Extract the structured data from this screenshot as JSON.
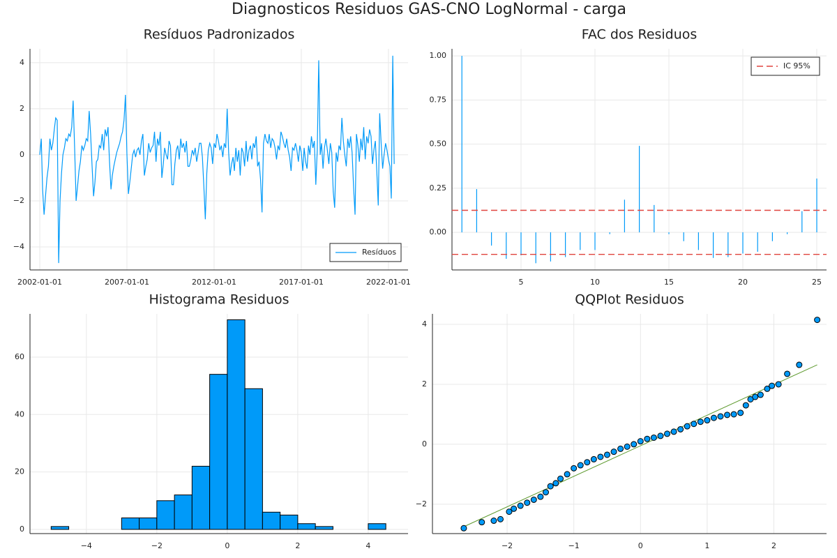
{
  "title": "Diagnosticos Residuos GAS-CNO LogNormal - carga",
  "chart_data": [
    {
      "type": "line",
      "title": "Resíduos Padronizados",
      "grid": true,
      "legend": "bottom-right",
      "xlim": [
        "2001-06-10",
        "2023-02-15"
      ],
      "ylim": [
        -5.0,
        4.6
      ],
      "xticks": [
        "2002-01-01",
        "2007-01-01",
        "2012-01-01",
        "2017-01-01",
        "2022-01-01"
      ],
      "yticks": [
        {
          "value": -4,
          "label": "−4"
        },
        {
          "value": -2,
          "label": "−2"
        },
        0,
        2,
        4
      ],
      "series": [
        {
          "name": "Resíduos",
          "color": "#009af9",
          "x": [
            "2002-01-01",
            "2002-02-01",
            "2002-03-01",
            "2002-04-01",
            "2002-05-01",
            "2002-06-01",
            "2002-07-01",
            "2002-08-01",
            "2002-09-01",
            "2002-10-01",
            "2002-11-01",
            "2002-12-01",
            "2003-01-01",
            "2003-02-01",
            "2003-03-01",
            "2003-04-01",
            "2003-05-01",
            "2003-06-01",
            "2003-07-01",
            "2003-08-01",
            "2003-09-01",
            "2003-10-01",
            "2003-11-01",
            "2003-12-01",
            "2004-01-01",
            "2004-02-01",
            "2004-03-01",
            "2004-04-01",
            "2004-05-01",
            "2004-06-01",
            "2004-07-01",
            "2004-08-01",
            "2004-09-01",
            "2004-10-01",
            "2004-11-01",
            "2004-12-01",
            "2005-01-01",
            "2005-02-01",
            "2005-03-01",
            "2005-04-01",
            "2005-05-01",
            "2005-06-01",
            "2005-07-01",
            "2005-08-01",
            "2005-09-01",
            "2005-10-01",
            "2005-11-01",
            "2005-12-01",
            "2006-01-01",
            "2006-02-01",
            "2006-03-01",
            "2006-04-01",
            "2006-05-01",
            "2006-06-01",
            "2006-07-01",
            "2006-08-01",
            "2006-09-01",
            "2006-10-01",
            "2006-11-01",
            "2006-12-01",
            "2007-01-01",
            "2007-02-01",
            "2007-03-01",
            "2007-04-01",
            "2007-05-01",
            "2007-06-01",
            "2007-07-01",
            "2007-08-01",
            "2007-09-01",
            "2007-10-01",
            "2007-11-01",
            "2007-12-01",
            "2008-01-01",
            "2008-02-01",
            "2008-03-01",
            "2008-04-01",
            "2008-05-01",
            "2008-06-01",
            "2008-07-01",
            "2008-08-01",
            "2008-09-01",
            "2008-10-01",
            "2008-11-01",
            "2008-12-01",
            "2009-01-01",
            "2009-02-01",
            "2009-03-01",
            "2009-04-01",
            "2009-05-01",
            "2009-06-01",
            "2009-07-01",
            "2009-08-01",
            "2009-09-01",
            "2009-10-01",
            "2009-11-01",
            "2009-12-01",
            "2010-01-01",
            "2010-02-01",
            "2010-03-01",
            "2010-04-01",
            "2010-05-01",
            "2010-06-01",
            "2010-07-01",
            "2010-08-01",
            "2010-09-01",
            "2010-10-01",
            "2010-11-01",
            "2010-12-01",
            "2011-01-01",
            "2011-02-01",
            "2011-03-01",
            "2011-04-01",
            "2011-05-01",
            "2011-06-01",
            "2011-07-01",
            "2011-08-01",
            "2011-09-01",
            "2011-10-01",
            "2011-11-01",
            "2011-12-01",
            "2012-01-01",
            "2012-02-01",
            "2012-03-01",
            "2012-04-01",
            "2012-05-01",
            "2012-06-01",
            "2012-07-01",
            "2012-08-01",
            "2012-09-01",
            "2012-10-01",
            "2012-11-01",
            "2012-12-01",
            "2013-01-01",
            "2013-02-01",
            "2013-03-01",
            "2013-04-01",
            "2013-05-01",
            "2013-06-01",
            "2013-07-01",
            "2013-08-01",
            "2013-09-01",
            "2013-10-01",
            "2013-11-01",
            "2013-12-01",
            "2014-01-01",
            "2014-02-01",
            "2014-03-01",
            "2014-04-01",
            "2014-05-01",
            "2014-06-01",
            "2014-07-01",
            "2014-08-01",
            "2014-09-01",
            "2014-10-01",
            "2014-11-01",
            "2014-12-01",
            "2015-01-01",
            "2015-02-01",
            "2015-03-01",
            "2015-04-01",
            "2015-05-01",
            "2015-06-01",
            "2015-07-01",
            "2015-08-01",
            "2015-09-01",
            "2015-10-01",
            "2015-11-01",
            "2015-12-01",
            "2016-01-01",
            "2016-02-01",
            "2016-03-01",
            "2016-04-01",
            "2016-05-01",
            "2016-06-01",
            "2016-07-01",
            "2016-08-01",
            "2016-09-01",
            "2016-10-01",
            "2016-11-01",
            "2016-12-01",
            "2017-01-01",
            "2017-02-01",
            "2017-03-01",
            "2017-04-01",
            "2017-05-01",
            "2017-06-01",
            "2017-07-01",
            "2017-08-01",
            "2017-09-01",
            "2017-10-01",
            "2017-11-01",
            "2017-12-01",
            "2018-01-01",
            "2018-02-01",
            "2018-03-01",
            "2018-04-01",
            "2018-05-01",
            "2018-06-01",
            "2018-07-01",
            "2018-08-01",
            "2018-09-01",
            "2018-10-01",
            "2018-11-01",
            "2018-12-01",
            "2019-01-01",
            "2019-02-01",
            "2019-03-01",
            "2019-04-01",
            "2019-05-01",
            "2019-06-01",
            "2019-07-01",
            "2019-08-01",
            "2019-09-01",
            "2019-10-01",
            "2019-11-01",
            "2019-12-01",
            "2020-01-01",
            "2020-02-01",
            "2020-03-01",
            "2020-04-01",
            "2020-05-01",
            "2020-06-01",
            "2020-07-01",
            "2020-08-01",
            "2020-09-01",
            "2020-10-01",
            "2020-11-01",
            "2020-12-01",
            "2021-01-01",
            "2021-02-01",
            "2021-03-01",
            "2021-04-01",
            "2021-05-01",
            "2021-06-01",
            "2021-07-01",
            "2021-08-01",
            "2021-09-01",
            "2021-10-01",
            "2021-11-01",
            "2021-12-01",
            "2022-01-01",
            "2022-02-01",
            "2022-03-01",
            "2022-04-01",
            "2022-05-01"
          ],
          "values": [
            0.0,
            0.7,
            -1.5,
            -2.6,
            -1.8,
            -1.0,
            -0.5,
            0.7,
            0.2,
            0.5,
            1.1,
            1.6,
            1.5,
            -4.7,
            -2.0,
            -0.8,
            0.0,
            0.3,
            0.7,
            0.6,
            0.9,
            0.8,
            1.2,
            2.35,
            0.3,
            -2.0,
            -1.4,
            -0.7,
            -0.3,
            0.4,
            0.2,
            0.4,
            0.7,
            0.6,
            1.9,
            0.9,
            -0.5,
            -1.8,
            -1.2,
            -0.3,
            -0.2,
            0.4,
            0.3,
            0.9,
            0.2,
            1.1,
            0.8,
            1.2,
            -0.3,
            -1.5,
            -0.9,
            -0.5,
            -0.2,
            0.1,
            0.3,
            0.5,
            0.8,
            1.0,
            1.5,
            2.6,
            0.0,
            -1.7,
            -1.2,
            -0.6,
            0.0,
            0.2,
            -0.1,
            0.2,
            0.3,
            0.0,
            0.6,
            0.9,
            -0.9,
            -0.5,
            -0.2,
            0.5,
            0.1,
            0.3,
            0.4,
            1.0,
            -0.3,
            0.7,
            0.4,
            1.0,
            -1.0,
            -0.4,
            0.3,
            0.0,
            -0.2,
            0.6,
            0.4,
            -1.3,
            -1.3,
            -0.4,
            0.2,
            0.4,
            -0.2,
            0.7,
            0.3,
            0.5,
            0.1,
            0.6,
            -0.5,
            -0.5,
            -0.2,
            0.2,
            0.0,
            0.3,
            -0.3,
            0.1,
            0.5,
            0.5,
            -0.1,
            -1.4,
            -2.8,
            -0.8,
            0.2,
            0.5,
            0.3,
            -0.4,
            0.5,
            0.3,
            0.9,
            0.6,
            0.2,
            0.4,
            -0.1,
            0.5,
            0.3,
            2.0,
            0.1,
            -0.9,
            -0.4,
            -0.1,
            -0.7,
            0.3,
            -0.3,
            0.2,
            -0.9,
            0.3,
            0.1,
            -0.5,
            0.6,
            -0.3,
            0.2,
            0.4,
            -0.2,
            0.5,
            0.3,
            0.8,
            -0.5,
            -0.3,
            -1.1,
            -2.5,
            0.5,
            0.9,
            0.6,
            0.5,
            0.9,
            0.3,
            0.7,
            0.6,
            0.3,
            -0.2,
            0.4,
            0.2,
            1.0,
            0.8,
            0.5,
            0.3,
            0.7,
            0.2,
            -0.1,
            -0.7,
            0.3,
            0.2,
            0.5,
            0.2,
            -0.3,
            0.4,
            0.1,
            -0.7,
            0.3,
            -0.3,
            -0.6,
            0.4,
            0.0,
            0.8,
            0.3,
            0.6,
            -1.3,
            0.2,
            4.1,
            0.0,
            0.5,
            -0.6,
            0.3,
            0.7,
            0.2,
            -0.4,
            0.5,
            0.1,
            -1.6,
            -2.3,
            0.1,
            -0.3,
            0.4,
            0.2,
            1.6,
            0.6,
            0.0,
            -0.5,
            0.7,
            0.3,
            0.8,
            0.1,
            -1.4,
            -2.6,
            0.9,
            0.4,
            -0.3,
            0.7,
            0.2,
            1.2,
            -0.2,
            0.8,
            0.5,
            1.1,
            0.8,
            -0.4,
            0.2,
            0.6,
            -0.7,
            -2.2,
            1.8,
            0.5,
            -0.6,
            0.0,
            0.5,
            0.2,
            -0.2,
            -0.5,
            -1.9,
            4.3,
            -0.4
          ]
        }
      ]
    },
    {
      "type": "stem",
      "title": "FAC dos Residuos",
      "grid": true,
      "legend": "top-right",
      "xlim": [
        0.33,
        25.66
      ],
      "ylim": [
        -0.213,
        1.04
      ],
      "xticks": [
        5,
        10,
        15,
        20,
        25
      ],
      "yticks": [
        {
          "value": 0,
          "label": "0.00"
        },
        {
          "value": 0.25,
          "label": "0.25"
        },
        {
          "value": 0.5,
          "label": "0.50"
        },
        {
          "value": 0.75,
          "label": "0.75"
        },
        {
          "value": 1,
          "label": "1.00"
        }
      ],
      "series": [
        {
          "color": "#009af9",
          "x": [
            1,
            2,
            3,
            4,
            5,
            6,
            7,
            8,
            9,
            10,
            11,
            12,
            13,
            14,
            15,
            16,
            17,
            18,
            19,
            20,
            21,
            22,
            23,
            24,
            25
          ],
          "values": [
            1.0,
            0.245,
            -0.075,
            -0.15,
            -0.13,
            -0.175,
            -0.165,
            -0.14,
            -0.1,
            -0.1,
            -0.01,
            0.185,
            0.49,
            0.155,
            -0.01,
            -0.05,
            -0.1,
            -0.145,
            -0.14,
            -0.12,
            -0.11,
            -0.05,
            -0.01,
            0.12,
            0.305
          ]
        }
      ],
      "hlines": {
        "name": "IC 95%",
        "color": "#e0443e",
        "values": [
          0.125,
          -0.125
        ]
      }
    },
    {
      "type": "histogram",
      "title": "Histograma Residuos",
      "grid": true,
      "color": "#009af9",
      "xlim": [
        -5.6,
        5.13
      ],
      "ylim": [
        -1.46,
        75.05
      ],
      "xticks": [
        {
          "value": -4,
          "label": "−4"
        },
        {
          "value": -2,
          "label": "−2"
        },
        0,
        2,
        4
      ],
      "yticks": [
        0,
        20,
        40,
        60
      ],
      "bins": [
        -5,
        -4.5,
        -4,
        -3.5,
        -3,
        -2.5,
        -2,
        -1.5,
        -1,
        -0.5,
        0,
        0.5,
        1,
        1.5,
        2,
        2.5,
        3,
        3.5,
        4,
        4.5
      ],
      "counts": [
        1,
        0,
        0,
        0,
        4,
        4,
        10,
        12,
        22,
        54,
        73,
        49,
        6,
        5,
        2,
        1,
        0,
        0,
        2
      ]
    },
    {
      "type": "scatter",
      "title": "QQPlot Residuos",
      "grid": true,
      "color": "#009af9",
      "xlim": [
        -3.12,
        2.79
      ],
      "ylim": [
        -2.98,
        4.35
      ],
      "xticks": [
        {
          "value": -2,
          "label": "−2"
        },
        {
          "value": -1,
          "label": "−1"
        },
        0,
        1,
        2
      ],
      "yticks": [
        {
          "value": -2,
          "label": "−2"
        },
        0,
        2,
        4
      ],
      "x": [
        -2.65,
        -2.38,
        -2.2,
        -2.1,
        -1.97,
        -1.9,
        -1.8,
        -1.7,
        -1.6,
        -1.5,
        -1.42,
        -1.35,
        -1.27,
        -1.2,
        -1.1,
        -1.0,
        -0.9,
        -0.8,
        -0.7,
        -0.6,
        -0.5,
        -0.4,
        -0.3,
        -0.2,
        -0.1,
        0.0,
        0.1,
        0.2,
        0.3,
        0.4,
        0.5,
        0.6,
        0.7,
        0.8,
        0.9,
        1.0,
        1.1,
        1.2,
        1.3,
        1.4,
        1.5,
        1.58,
        1.65,
        1.72,
        1.8,
        1.9,
        1.97,
        2.07,
        2.2,
        2.38,
        2.65
      ],
      "values": [
        -2.8,
        -2.6,
        -2.55,
        -2.5,
        -2.25,
        -2.15,
        -2.05,
        -1.95,
        -1.85,
        -1.75,
        -1.6,
        -1.4,
        -1.3,
        -1.15,
        -1.0,
        -0.8,
        -0.7,
        -0.6,
        -0.5,
        -0.42,
        -0.35,
        -0.25,
        -0.15,
        -0.08,
        0.0,
        0.1,
        0.18,
        0.22,
        0.28,
        0.35,
        0.42,
        0.5,
        0.6,
        0.68,
        0.75,
        0.8,
        0.88,
        0.93,
        0.98,
        1.0,
        1.05,
        1.3,
        1.5,
        1.58,
        1.65,
        1.85,
        1.95,
        2.0,
        2.35,
        2.65,
        4.15
      ],
      "reference_line": {
        "color": "#5e9a2e",
        "x": [
          -2.65,
          2.65
        ],
        "values": [
          -2.75,
          2.65
        ]
      }
    }
  ]
}
